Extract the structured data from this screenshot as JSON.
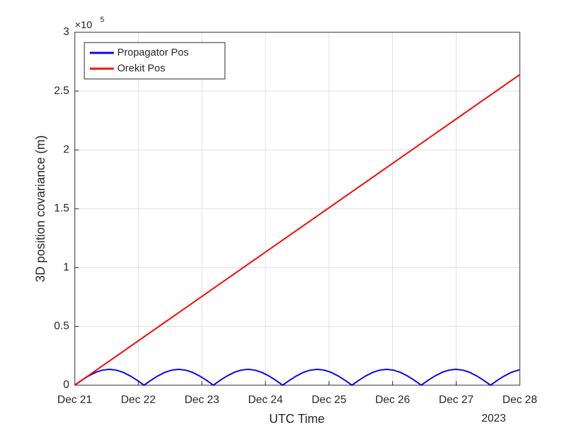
{
  "chart_data": {
    "type": "line",
    "x_label": "UTC Time",
    "y_label": "3D position covariance (m)",
    "y_multiplier": {
      "base": "×10",
      "exponent": "5"
    },
    "x_secondary_label": "2023",
    "xlim": [
      0,
      7
    ],
    "xticks": [
      {
        "value": 0,
        "label": "Dec 21"
      },
      {
        "value": 1,
        "label": "Dec 22"
      },
      {
        "value": 2,
        "label": "Dec 23"
      },
      {
        "value": 3,
        "label": "Dec 24"
      },
      {
        "value": 4,
        "label": "Dec 25"
      },
      {
        "value": 5,
        "label": "Dec 26"
      },
      {
        "value": 6,
        "label": "Dec 27"
      },
      {
        "value": 7,
        "label": "Dec 28"
      }
    ],
    "ylim": [
      0,
      3
    ],
    "yticks": [
      0,
      0.5,
      1,
      1.5,
      2,
      2.5,
      3
    ],
    "grid": true,
    "legend": "top-left",
    "series": [
      {
        "name": "Propagator Pos",
        "color": "#0000ff",
        "x": [
          0,
          0.109,
          0.218,
          0.327,
          0.436,
          0.545,
          0.654,
          0.763,
          0.872,
          0.981,
          1.09,
          1.199,
          1.308,
          1.417,
          1.526,
          1.635,
          1.744,
          1.853,
          1.962,
          2.071,
          2.18,
          2.289,
          2.398,
          2.507,
          2.616,
          2.725,
          2.834,
          2.943,
          3.052,
          3.161,
          3.27,
          3.379,
          3.488,
          3.597,
          3.706,
          3.815,
          3.924,
          4.033,
          4.142,
          4.251,
          4.36,
          4.469,
          4.578,
          4.687,
          4.796,
          4.905,
          5.014,
          5.123,
          5.232,
          5.341,
          5.45,
          5.559,
          5.668,
          5.777,
          5.886,
          5.995,
          6.104,
          6.213,
          6.322,
          6.431,
          6.54,
          6.649,
          6.758,
          6.867,
          6.976,
          7
        ],
        "values": [
          0,
          0.042,
          0.079,
          0.109,
          0.128,
          0.135,
          0.128,
          0.109,
          0.079,
          0.042,
          0,
          0.042,
          0.079,
          0.109,
          0.128,
          0.135,
          0.128,
          0.109,
          0.079,
          0.042,
          0,
          0.042,
          0.079,
          0.109,
          0.128,
          0.135,
          0.128,
          0.109,
          0.079,
          0.042,
          0,
          0.042,
          0.079,
          0.109,
          0.128,
          0.135,
          0.128,
          0.109,
          0.079,
          0.042,
          0,
          0.042,
          0.079,
          0.109,
          0.128,
          0.135,
          0.128,
          0.109,
          0.079,
          0.042,
          0,
          0.042,
          0.079,
          0.109,
          0.128,
          0.135,
          0.128,
          0.109,
          0.079,
          0.042,
          0,
          0.042,
          0.079,
          0.109,
          0.128,
          0.131
        ]
      },
      {
        "name": "Orekit Pos",
        "color": "#ff0000",
        "x": [
          0,
          7
        ],
        "values": [
          0,
          2.64
        ]
      }
    ]
  }
}
